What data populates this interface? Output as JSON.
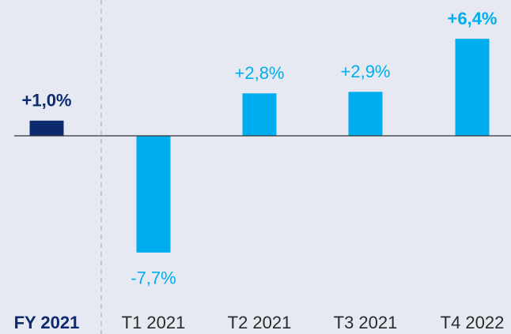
{
  "chart_data": {
    "type": "bar",
    "categories": [
      "FY 2021",
      "T1 2021",
      "T2 2021",
      "T3 2021",
      "T4 2022"
    ],
    "values": [
      1.0,
      -7.7,
      2.8,
      2.9,
      6.4
    ],
    "value_labels": [
      "+1,0%",
      "-7,7%",
      "+2,8%",
      "+2,9%",
      "+6,4%"
    ],
    "colors": [
      "#0d2a6e",
      "#00aeef",
      "#00aeef",
      "#00aeef",
      "#00aeef"
    ]
  }
}
